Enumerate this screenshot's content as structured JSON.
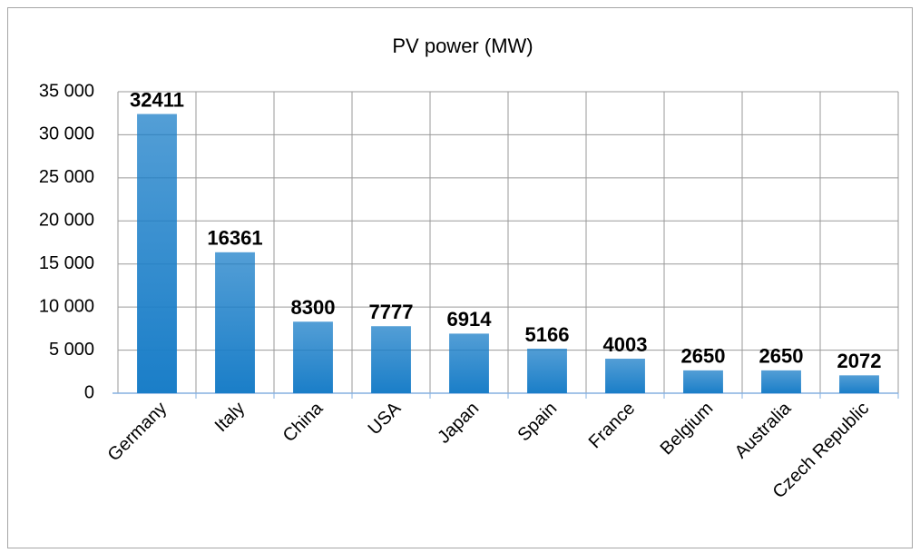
{
  "chart_data": {
    "type": "bar",
    "title": "PV power (MW)",
    "categories": [
      "Germany",
      "Italy",
      "China",
      "USA",
      "Japan",
      "Spain",
      "France",
      "Belgium",
      "Australia",
      "Czech Republic"
    ],
    "values": [
      32411,
      16361,
      8300,
      7777,
      6914,
      5166,
      4003,
      2650,
      2650,
      2072
    ],
    "color": "#1a7ec8",
    "ylim": [
      0,
      35000
    ],
    "yticks": [
      0,
      {
        "value": 5000,
        "label": "5 000"
      },
      {
        "value": 10000,
        "label": "10 000"
      },
      {
        "value": 15000,
        "label": "15 000"
      },
      {
        "value": 20000,
        "label": "20 000"
      },
      {
        "value": 25000,
        "label": "25 000"
      },
      {
        "value": 30000,
        "label": "30 000"
      },
      {
        "value": 35000,
        "label": "35 000"
      }
    ],
    "grid": true
  }
}
